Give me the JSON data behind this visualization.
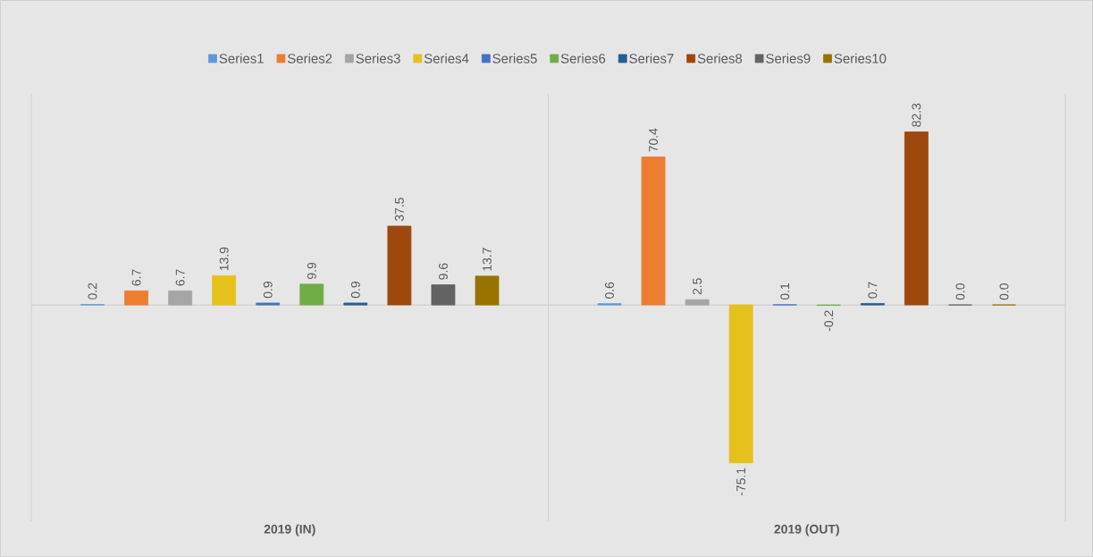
{
  "chart_data": {
    "type": "bar",
    "categories": [
      "2019 (IN)",
      "2019 (OUT)"
    ],
    "series": [
      {
        "name": "Series1",
        "color": "#5b9bd5",
        "values": [
          0.2,
          0.6
        ],
        "value_labels": [
          "0.2",
          "0.6"
        ]
      },
      {
        "name": "Series2",
        "color": "#ed7d31",
        "values": [
          6.7,
          70.4
        ],
        "value_labels": [
          "6.7",
          "70.4"
        ]
      },
      {
        "name": "Series3",
        "color": "#a5a5a5",
        "values": [
          6.7,
          2.5
        ],
        "value_labels": [
          "6.7",
          "2.5"
        ]
      },
      {
        "name": "Series4",
        "color": "#e6c01c",
        "values": [
          13.9,
          -75.1
        ],
        "value_labels": [
          "13.9",
          "-75.1"
        ]
      },
      {
        "name": "Series5",
        "color": "#4472c4",
        "values": [
          0.9,
          0.1
        ],
        "value_labels": [
          "0.9",
          "0.1"
        ]
      },
      {
        "name": "Series6",
        "color": "#70ad47",
        "values": [
          9.9,
          -0.2
        ],
        "value_labels": [
          "9.9",
          "-0.2"
        ]
      },
      {
        "name": "Series7",
        "color": "#255e91",
        "values": [
          0.9,
          0.7
        ],
        "value_labels": [
          "0.9",
          "0.7"
        ]
      },
      {
        "name": "Series8",
        "color": "#9e480e",
        "values": [
          37.5,
          82.3
        ],
        "value_labels": [
          "37.5",
          "82.3"
        ]
      },
      {
        "name": "Series9",
        "color": "#636363",
        "values": [
          9.6,
          0.0
        ],
        "value_labels": [
          "9.6",
          "0.0"
        ]
      },
      {
        "name": "Series10",
        "color": "#997300",
        "values": [
          13.7,
          0.0
        ],
        "value_labels": [
          "13.7",
          "0.0"
        ]
      }
    ],
    "grid": "x",
    "legend": "top"
  }
}
